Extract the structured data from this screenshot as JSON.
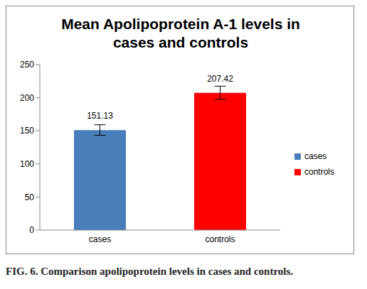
{
  "chart_data": {
    "type": "bar",
    "title": "Mean Apolipoprotein A-1 levels in cases and controls",
    "categories": [
      "cases",
      "controls"
    ],
    "values": [
      151.13,
      207.42
    ],
    "errors": [
      8,
      10
    ],
    "colors": [
      "#4a7ebb",
      "#ff0000"
    ],
    "ylim": [
      0,
      250
    ],
    "yticks": [
      0,
      50,
      100,
      150,
      200,
      250
    ],
    "grid": false,
    "data_labels": true,
    "legend": "right",
    "caption": "FIG. 6. Comparison apolipoprotein levels in cases and controls."
  }
}
